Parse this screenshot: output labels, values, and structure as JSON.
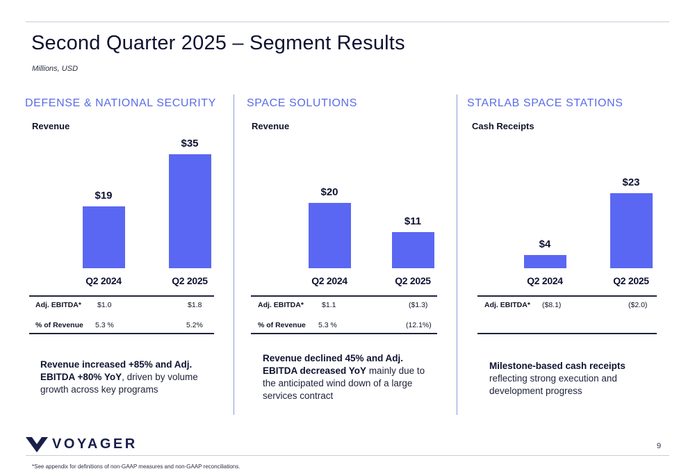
{
  "title": "Second Quarter 2025 – Segment Results",
  "subtitle": "Millions, USD",
  "colors": {
    "bar": "#5a67f2",
    "heading": "#5a6be8",
    "text": "#0e1230"
  },
  "chart_data": [
    {
      "type": "bar",
      "heading": "DEFENSE & NATIONAL SECURITY",
      "metric": "Revenue",
      "categories": [
        "Q2 2024",
        "Q2 2025"
      ],
      "values": [
        19,
        35
      ],
      "value_labels": [
        "$19",
        "$35"
      ],
      "table": [
        {
          "label": "Adj. EBITDA*",
          "values": [
            "$1.0",
            "$1.8"
          ]
        },
        {
          "label": "% of Revenue",
          "values": [
            "5.3 %",
            "5.2%"
          ]
        }
      ],
      "note_bold": "Revenue increased +85% and Adj. EBITDA +80% YoY",
      "note_rest": ", driven by volume growth across key programs"
    },
    {
      "type": "bar",
      "heading": "SPACE SOLUTIONS",
      "metric": "Revenue",
      "categories": [
        "Q2 2024",
        "Q2 2025"
      ],
      "values": [
        20,
        11
      ],
      "value_labels": [
        "$20",
        "$11"
      ],
      "table": [
        {
          "label": "Adj. EBITDA*",
          "values": [
            "$1.1",
            "($1.3)"
          ]
        },
        {
          "label": "% of Revenue",
          "values": [
            "5.3 %",
            "(12.1%)"
          ]
        }
      ],
      "note_bold": "Revenue declined 45% and Adj. EBITDA decreased YoY",
      "note_rest": " mainly due to the anticipated wind down of a large services contract"
    },
    {
      "type": "bar",
      "heading": "STARLAB SPACE STATIONS",
      "metric": "Cash Receipts",
      "categories": [
        "Q2 2024",
        "Q2 2025"
      ],
      "values": [
        4,
        23
      ],
      "value_labels": [
        "$4",
        "$23"
      ],
      "table": [
        {
          "label": "Adj. EBITDA*",
          "values": [
            "($8.1)",
            "($2.0)"
          ]
        }
      ],
      "note_bold": "Milestone-based cash receipts",
      "note_rest": " reflecting strong execution and development progress"
    }
  ],
  "footer": {
    "brand": "VOYAGER",
    "page_number": "9",
    "footnote": "*See appendix for definitions of non-GAAP measures and non-GAAP reconciliations."
  }
}
